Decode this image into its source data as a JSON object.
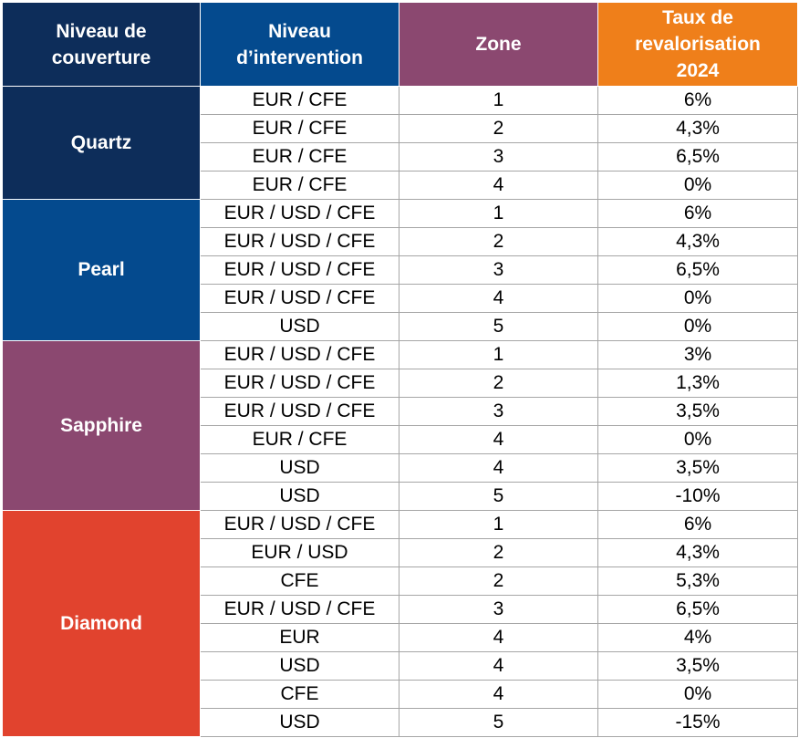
{
  "colors": {
    "quartz": "#0d2d5a",
    "pearl": "#044a8e",
    "sapphire": "#8b4870",
    "diamond": "#e1432e",
    "header_zone": "#8b4870",
    "header_taux": "#ef7f1a",
    "header_niveau": "#0d2d5a",
    "header_intervention": "#044a8e"
  },
  "headers": {
    "couverture": [
      "Niveau de",
      "couverture"
    ],
    "intervention": [
      "Niveau",
      "d’intervention"
    ],
    "zone": [
      "Zone"
    ],
    "taux": [
      "Taux de",
      "revalorisation",
      "2024"
    ]
  },
  "groups": [
    {
      "name": "Quartz",
      "color": "#0d2d5a",
      "rows": [
        {
          "intervention": "EUR / CFE",
          "zone": "1",
          "taux": "6%"
        },
        {
          "intervention": "EUR / CFE",
          "zone": "2",
          "taux": "4,3%"
        },
        {
          "intervention": "EUR / CFE",
          "zone": "3",
          "taux": "6,5%"
        },
        {
          "intervention": "EUR / CFE",
          "zone": "4",
          "taux": "0%"
        }
      ]
    },
    {
      "name": "Pearl",
      "color": "#044a8e",
      "rows": [
        {
          "intervention": "EUR / USD / CFE",
          "zone": "1",
          "taux": "6%"
        },
        {
          "intervention": "EUR / USD / CFE",
          "zone": "2",
          "taux": "4,3%"
        },
        {
          "intervention": "EUR / USD / CFE",
          "zone": "3",
          "taux": "6,5%"
        },
        {
          "intervention": "EUR / USD / CFE",
          "zone": "4",
          "taux": "0%"
        },
        {
          "intervention": "USD",
          "zone": "5",
          "taux": "0%"
        }
      ]
    },
    {
      "name": "Sapphire",
      "color": "#8b4870",
      "rows": [
        {
          "intervention": "EUR / USD / CFE",
          "zone": "1",
          "taux": "3%"
        },
        {
          "intervention": "EUR / USD / CFE",
          "zone": "2",
          "taux": "1,3%"
        },
        {
          "intervention": "EUR / USD / CFE",
          "zone": "3",
          "taux": "3,5%"
        },
        {
          "intervention": "EUR / CFE",
          "zone": "4",
          "taux": "0%"
        },
        {
          "intervention": "USD",
          "zone": "4",
          "taux": "3,5%"
        },
        {
          "intervention": "USD",
          "zone": "5",
          "taux": "-10%"
        }
      ]
    },
    {
      "name": "Diamond",
      "color": "#e1432e",
      "rows": [
        {
          "intervention": "EUR / USD / CFE",
          "zone": "1",
          "taux": "6%"
        },
        {
          "intervention": "EUR / USD",
          "zone": "2",
          "taux": "4,3%"
        },
        {
          "intervention": "CFE",
          "zone": "2",
          "taux": "5,3%"
        },
        {
          "intervention": "EUR / USD / CFE",
          "zone": "3",
          "taux": "6,5%"
        },
        {
          "intervention": "EUR",
          "zone": "4",
          "taux": "4%"
        },
        {
          "intervention": "USD",
          "zone": "4",
          "taux": "3,5%"
        },
        {
          "intervention": "CFE",
          "zone": "4",
          "taux": "0%"
        },
        {
          "intervention": "USD",
          "zone": "5",
          "taux": "-15%"
        }
      ]
    }
  ]
}
